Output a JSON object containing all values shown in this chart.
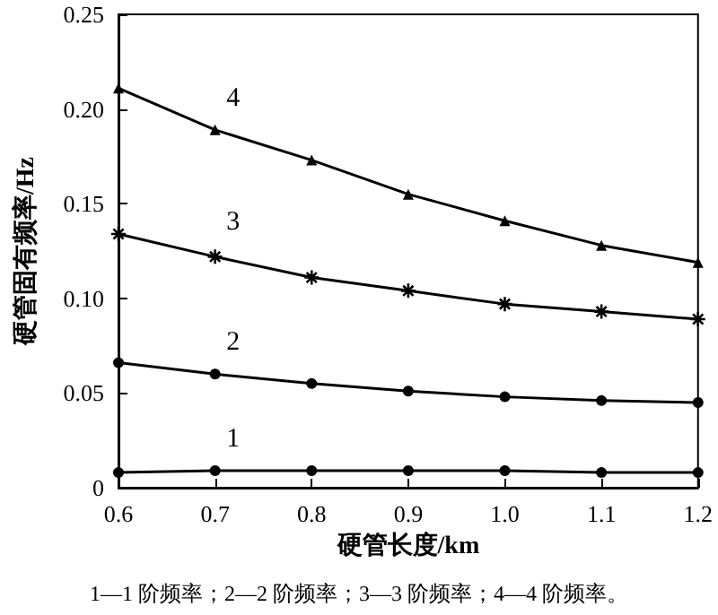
{
  "chart_data": {
    "type": "line",
    "xlabel": "硬管长度/km",
    "ylabel": "硬管固有频率/Hz",
    "x": [
      0.6,
      0.7,
      0.8,
      0.9,
      1.0,
      1.1,
      1.2
    ],
    "series": [
      {
        "name": "1",
        "color": "#000000",
        "marker": "circle",
        "values": [
          0.008,
          0.009,
          0.009,
          0.009,
          0.009,
          0.008,
          0.008
        ]
      },
      {
        "name": "2",
        "color": "#000000",
        "marker": "circle",
        "values": [
          0.066,
          0.06,
          0.055,
          0.051,
          0.048,
          0.046,
          0.045
        ]
      },
      {
        "name": "3",
        "color": "#000000",
        "marker": "cross",
        "values": [
          0.134,
          0.122,
          0.111,
          0.104,
          0.097,
          0.093,
          0.089
        ]
      },
      {
        "name": "4",
        "color": "#000000",
        "marker": "triangle",
        "values": [
          0.211,
          0.189,
          0.173,
          0.155,
          0.141,
          0.128,
          0.119
        ]
      }
    ],
    "xlim": [
      0.6,
      1.2
    ],
    "xticks": [
      0.6,
      0.7,
      0.8,
      0.9,
      {
        "value": 1.0,
        "label": "1.0"
      },
      1.1,
      1.2
    ],
    "ylim": [
      0,
      0.25
    ],
    "yticks": [
      0,
      0.05,
      {
        "value": 0.1,
        "label": "0.10"
      },
      0.15,
      {
        "value": 0.2,
        "label": "0.20"
      },
      0.25
    ],
    "grid": false,
    "line_style": "solid",
    "annotations": [
      "1—1 阶频率；2—2 阶频率；3—3 阶频率；4—4 阶频率。"
    ]
  }
}
